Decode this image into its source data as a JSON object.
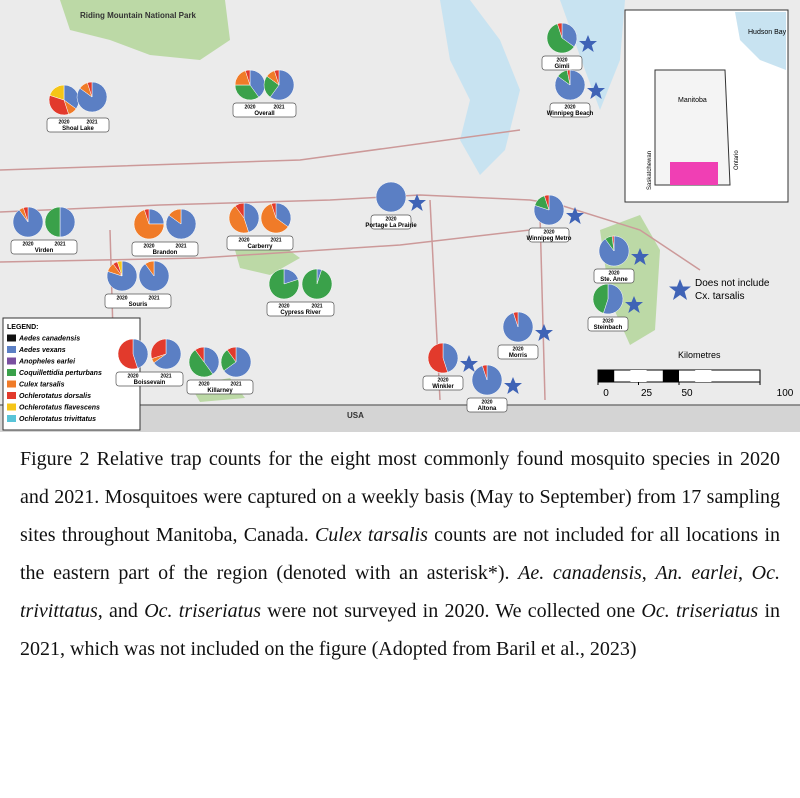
{
  "map": {
    "labels": {
      "park": "Riding Mountain National Park",
      "bay": "Hudson Bay",
      "province": "Manitoba",
      "west": "Saskatchewan",
      "east": "Ontario",
      "usa": "USA"
    },
    "star_note": [
      "Does not include",
      "Cx. tarsalis"
    ],
    "scale": {
      "title": "Kilometres",
      "ticks": [
        0,
        25,
        50,
        100
      ]
    },
    "legend_title": "LEGEND:",
    "species": [
      {
        "name": "Aedes canadensis",
        "color": "#111111"
      },
      {
        "name": "Aedes vexans",
        "color": "#5b7fc4"
      },
      {
        "name": "Anopheles earlei",
        "color": "#7a4fa0"
      },
      {
        "name": "Coquillettidia perturbans",
        "color": "#3aa14a"
      },
      {
        "name": "Culex tarsalis",
        "color": "#f07b28"
      },
      {
        "name": "Ochlerotatus dorsalis",
        "color": "#e23a2c"
      },
      {
        "name": "Ochlerotatus flavescens",
        "color": "#f5c518"
      },
      {
        "name": "Ochlerotatus trivittatus",
        "color": "#58c4d8"
      }
    ],
    "sites": [
      {
        "name": "Shoal Lake",
        "pies": [
          {
            "year": "2020",
            "values": [
              0,
              35,
              0,
              0,
              10,
              35,
              20,
              0
            ]
          },
          {
            "year": "2021",
            "values": [
              0,
              85,
              0,
              0,
              10,
              5,
              0,
              0
            ]
          }
        ]
      },
      {
        "name": "Overall",
        "pies": [
          {
            "year": "2020",
            "values": [
              0,
              40,
              0,
              35,
              20,
              5,
              0,
              0
            ]
          },
          {
            "year": "2021",
            "values": [
              0,
              60,
              0,
              25,
              10,
              5,
              0,
              0
            ]
          }
        ]
      },
      {
        "name": "Gimli",
        "excludes_tarsalis": true,
        "pies": [
          {
            "year": "2020",
            "values": [
              0,
              35,
              0,
              60,
              0,
              5,
              0,
              0
            ]
          }
        ]
      },
      {
        "name": "Winnipeg Beach",
        "excludes_tarsalis": true,
        "pies": [
          {
            "year": "2020",
            "values": [
              0,
              85,
              0,
              12,
              0,
              3,
              0,
              0
            ]
          }
        ]
      },
      {
        "name": "Virden",
        "pies": [
          {
            "year": "2020",
            "values": [
              0,
              90,
              0,
              0,
              5,
              5,
              0,
              0
            ]
          },
          {
            "year": "2021",
            "values": [
              0,
              50,
              0,
              50,
              0,
              0,
              0,
              0
            ]
          }
        ]
      },
      {
        "name": "Brandon",
        "pies": [
          {
            "year": "2020",
            "values": [
              0,
              25,
              0,
              0,
              70,
              5,
              0,
              0
            ]
          },
          {
            "year": "2021",
            "values": [
              0,
              85,
              0,
              0,
              15,
              0,
              0,
              0
            ]
          }
        ]
      },
      {
        "name": "Carberry",
        "pies": [
          {
            "year": "2020",
            "values": [
              0,
              45,
              0,
              0,
              45,
              10,
              0,
              0
            ]
          },
          {
            "year": "2021",
            "values": [
              0,
              35,
              0,
              0,
              60,
              5,
              0,
              0
            ]
          }
        ]
      },
      {
        "name": "Portage La Prairie",
        "excludes_tarsalis": true,
        "pies": [
          {
            "year": "2020",
            "values": [
              0,
              100,
              0,
              0,
              0,
              0,
              0,
              0
            ]
          }
        ]
      },
      {
        "name": "Winnipeg Metro",
        "excludes_tarsalis": true,
        "pies": [
          {
            "year": "2020",
            "values": [
              0,
              80,
              0,
              15,
              0,
              5,
              0,
              0
            ]
          }
        ]
      },
      {
        "name": "Ste. Anne",
        "excludes_tarsalis": true,
        "pies": [
          {
            "year": "2020",
            "values": [
              0,
              90,
              0,
              8,
              0,
              2,
              0,
              0
            ]
          }
        ]
      },
      {
        "name": "Steinbach",
        "excludes_tarsalis": true,
        "pies": [
          {
            "year": "2020",
            "values": [
              0,
              55,
              0,
              45,
              0,
              0,
              0,
              0
            ]
          }
        ]
      },
      {
        "name": "Souris",
        "pies": [
          {
            "year": "2020",
            "values": [
              0,
              80,
              0,
              0,
              10,
              5,
              5,
              0
            ]
          },
          {
            "year": "2021",
            "values": [
              0,
              90,
              0,
              0,
              10,
              0,
              0,
              0
            ]
          }
        ]
      },
      {
        "name": "Cypress River",
        "pies": [
          {
            "year": "2020",
            "values": [
              0,
              20,
              0,
              80,
              0,
              0,
              0,
              0
            ]
          },
          {
            "year": "2021",
            "values": [
              0,
              5,
              0,
              95,
              0,
              0,
              0,
              0
            ]
          }
        ]
      },
      {
        "name": "Morris",
        "excludes_tarsalis": true,
        "pies": [
          {
            "year": "2020",
            "values": [
              0,
              95,
              0,
              0,
              0,
              5,
              0,
              0
            ]
          }
        ]
      },
      {
        "name": "Boissevain",
        "pies": [
          {
            "year": "2020",
            "values": [
              0,
              45,
              0,
              0,
              0,
              55,
              0,
              0
            ]
          },
          {
            "year": "2021",
            "values": [
              0,
              65,
              0,
              0,
              5,
              30,
              0,
              0
            ]
          }
        ]
      },
      {
        "name": "Killarney",
        "pies": [
          {
            "year": "2020",
            "values": [
              0,
              40,
              0,
              50,
              0,
              10,
              0,
              0
            ]
          },
          {
            "year": "2021",
            "values": [
              0,
              65,
              0,
              25,
              0,
              10,
              0,
              0
            ]
          }
        ]
      },
      {
        "name": "Winkler",
        "excludes_tarsalis": true,
        "pies": [
          {
            "year": "2020",
            "values": [
              0,
              45,
              0,
              0,
              0,
              55,
              0,
              0
            ]
          }
        ]
      },
      {
        "name": "Altona",
        "excludes_tarsalis": true,
        "pies": [
          {
            "year": "2020",
            "values": [
              0,
              95,
              0,
              0,
              0,
              5,
              0,
              0
            ]
          }
        ]
      }
    ]
  },
  "caption": [
    {
      "text": "Figure 2 Relative trap counts for the eight most commonly found mosquito species in 2020 and 2021. Mosquitoes were captured on a weekly basis (May to September) from 17 sampling sites throughout Manitoba, Canada. ",
      "italic": false
    },
    {
      "text": "Culex tarsalis",
      "italic": true
    },
    {
      "text": " counts are not included for all locations in the eastern part of the region (denoted with an asterisk*). ",
      "italic": false
    },
    {
      "text": "Ae. canadensis",
      "italic": true
    },
    {
      "text": ", ",
      "italic": false
    },
    {
      "text": "An. earlei",
      "italic": true
    },
    {
      "text": ", ",
      "italic": false
    },
    {
      "text": "Oc. trivittatus,",
      "italic": true
    },
    {
      "text": " and ",
      "italic": false
    },
    {
      "text": "Oc. triseriatus",
      "italic": true
    },
    {
      "text": " were not surveyed in 2020. We collected one ",
      "italic": false
    },
    {
      "text": "Oc. triseriatus",
      "italic": true
    },
    {
      "text": " in 2021, which was not included on the figure (Adopted from Baril et al., 2023)",
      "italic": false
    }
  ]
}
